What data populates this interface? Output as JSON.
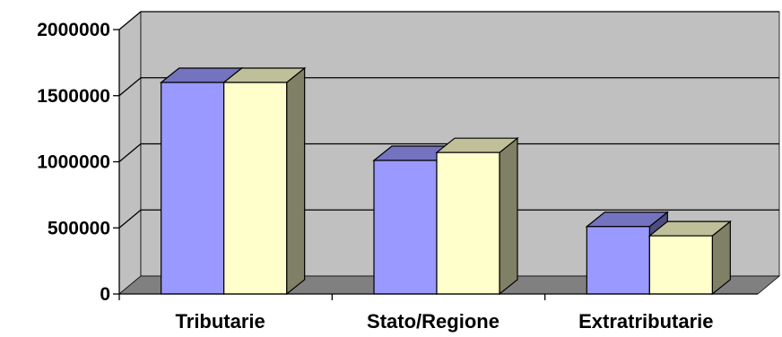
{
  "chart_data": {
    "type": "bar",
    "style": "3d-clustered-column",
    "title": "",
    "xlabel": "",
    "ylabel": "",
    "categories": [
      "Tributarie",
      "Stato/Regione",
      "Extratributarie"
    ],
    "series": [
      {
        "values": [
          1600000,
          1010000,
          510000
        ],
        "color": "#9999ff"
      },
      {
        "values": [
          1600000,
          1070000,
          440000
        ],
        "color": "#ffffcc"
      }
    ],
    "ylim": [
      0,
      2000000
    ],
    "yticks": [
      "0",
      "500000",
      "1000000",
      "1500000",
      "2000000"
    ],
    "grid": true,
    "legend": "none",
    "colors": {
      "wall": "#c0c0c0",
      "floor": "#808080",
      "gridline": "#000000"
    }
  }
}
